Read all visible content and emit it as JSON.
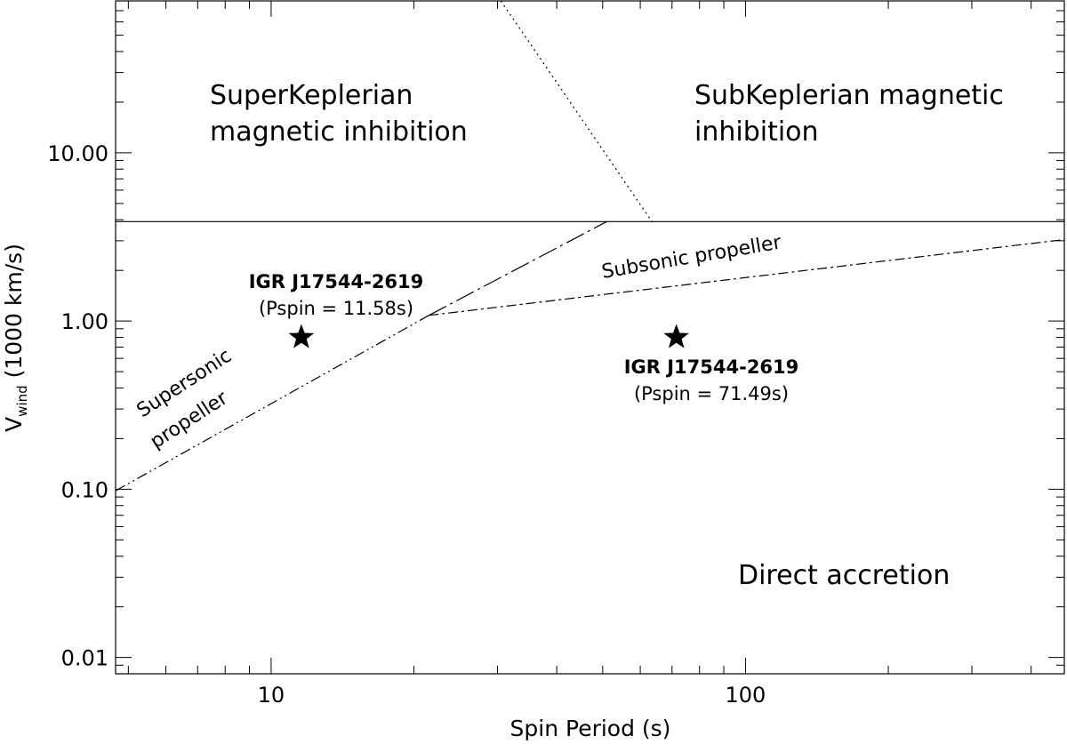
{
  "chart_data": {
    "type": "line",
    "x_scale": "log",
    "y_scale": "log",
    "xlim": [
      4.7,
      470
    ],
    "ylim": [
      0.008,
      80
    ],
    "xlabel": "Spin Period (s)",
    "ylabel": {
      "main": "V",
      "sub": "wind",
      "rest": " (1000 km/s)"
    },
    "x_ticks": [
      {
        "value": 10,
        "label": "10"
      },
      {
        "value": 100,
        "label": "100"
      }
    ],
    "y_ticks": [
      {
        "value": 0.01,
        "label": "0.01"
      },
      {
        "value": 0.1,
        "label": "0.10"
      },
      {
        "value": 1,
        "label": "1.00"
      },
      {
        "value": 10,
        "label": "10.00"
      }
    ],
    "grid": false,
    "boundaries": [
      {
        "id": "magnetic-inhibition-line",
        "style": "solid",
        "points": [
          [
            4.7,
            3.9
          ],
          [
            470,
            3.9
          ]
        ]
      },
      {
        "id": "kepler-divider-line",
        "style": "dotted",
        "points": [
          [
            30.5,
            80
          ],
          [
            63.5,
            3.9
          ]
        ]
      },
      {
        "id": "supersonic-propeller-line",
        "style": "dash-dot-dot",
        "points": [
          [
            4.7,
            0.098
          ],
          [
            21.5,
            1.08
          ]
        ]
      },
      {
        "id": "propeller-upper-line",
        "style": "long-dash-dot",
        "points": [
          [
            21.5,
            1.08
          ],
          [
            51,
            3.9
          ]
        ]
      },
      {
        "id": "subsonic-propeller-line",
        "style": "dash-dot",
        "points": [
          [
            21.5,
            1.08
          ],
          [
            470,
            3.05
          ]
        ]
      }
    ],
    "points": [
      {
        "id": "source-fast",
        "x": 11.58,
        "y": 0.8,
        "marker": "star",
        "name": "IGR J17544-2619",
        "period_label": "(Pspin = 11.58s)"
      },
      {
        "id": "source-slow",
        "x": 71.49,
        "y": 0.8,
        "marker": "star",
        "name": "IGR J17544-2619",
        "period_label": "(Pspin = 71.49s)"
      }
    ],
    "regions": {
      "super_keplerian": [
        "SuperKeplerian",
        "magnetic inhibition"
      ],
      "sub_keplerian": [
        "SubKeplerian magnetic",
        "inhibition"
      ],
      "supersonic": [
        "Supersonic",
        "propeller"
      ],
      "subsonic": "Subsonic propeller",
      "direct": "Direct accretion"
    }
  }
}
